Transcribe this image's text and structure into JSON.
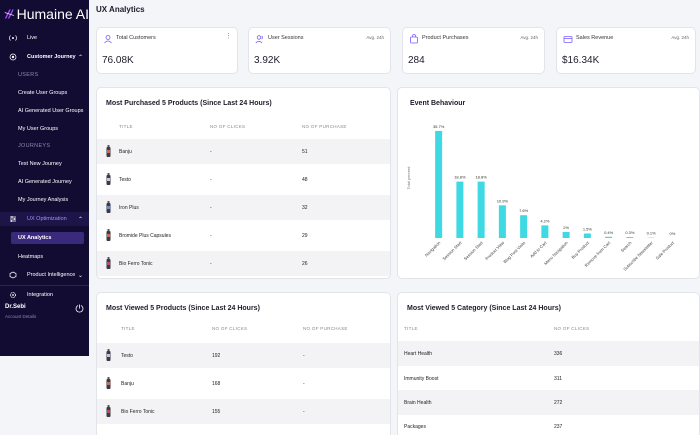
{
  "brand": {
    "name": "Humaine AI"
  },
  "sidebar": {
    "live": "Live",
    "customer_journey": "Customer Journey",
    "users_head": "USERS",
    "create_groups": "Create User Groups",
    "ai_groups": "AI Generated User Groups",
    "my_groups": "My User Groups",
    "journeys_head": "JOURNEYS",
    "test_journey": "Test New Journey",
    "ai_journey": "AI Generated Journey",
    "my_journey_analysis": "My Journey Analysis",
    "ux_optimization": "UX Optimization",
    "ux_analytics": "UX Analytics",
    "heatmaps": "Heatmaps",
    "product_intelligence": "Product Intelligence",
    "integration": "Integration",
    "user_name": "Dr.Sebi",
    "account_details": "Account Details"
  },
  "page": {
    "title": "UX Analytics"
  },
  "stats": [
    {
      "title": "Total Customers",
      "avg": "",
      "value": "76.08K"
    },
    {
      "title": "User Sessions",
      "avg": "Avg. 24h",
      "value": "3.92K"
    },
    {
      "title": "Product Purchases",
      "avg": "Avg. 24h",
      "value": "284"
    },
    {
      "title": "Sales Revenue",
      "avg": "Avg. 24h",
      "value": "$16.34K"
    }
  ],
  "purchased": {
    "title": "Most Purchased 5 Products (Since Last 24 Hours)",
    "headers": [
      "TITLE",
      "NO OF CLICKS",
      "NO OF PURCHASE"
    ],
    "rows": [
      {
        "name": "Banju",
        "clicks": "-",
        "purchase": "51"
      },
      {
        "name": "Testo",
        "clicks": "-",
        "purchase": "48"
      },
      {
        "name": "Iron Plus",
        "clicks": "-",
        "purchase": "32"
      },
      {
        "name": "Bromide Plus Capsules",
        "clicks": "-",
        "purchase": "29"
      },
      {
        "name": "Bio Ferro Tonic",
        "clicks": "-",
        "purchase": "26"
      }
    ]
  },
  "viewed": {
    "title": "Most Viewed 5 Products (Since Last 24 Hours)",
    "headers": [
      "TITLE",
      "NO OF CLICKS",
      "NO OF PURCHASE"
    ],
    "rows": [
      {
        "name": "Testo",
        "clicks": "192",
        "purchase": "-"
      },
      {
        "name": "Banju",
        "clicks": "168",
        "purchase": "-"
      },
      {
        "name": "Bio Ferro Tonic",
        "clicks": "155",
        "purchase": "-"
      }
    ]
  },
  "category": {
    "title": "Most Viewed 5 Category (Since Last 24 Hours)",
    "headers": [
      "TITLE",
      "NO OF CLICKS"
    ],
    "rows": [
      {
        "name": "Heart Health",
        "clicks": "336"
      },
      {
        "name": "Immunity Boost",
        "clicks": "311"
      },
      {
        "name": "Brain Health",
        "clicks": "272"
      },
      {
        "name": "Packages",
        "clicks": "237"
      }
    ]
  },
  "colors": {
    "bar": "#3fd9e4",
    "sidebar": "#120c33",
    "accent": "#7a5cff"
  },
  "chart_data": {
    "type": "bar",
    "title": "Event Behaviour",
    "ylabel": "Total percent",
    "categories": [
      "Navigation",
      "Session Start",
      "Session Start",
      "Product View",
      "Blog Post Visits",
      "Add to Cart",
      "Menu Navigation",
      "Buy Product",
      "Remove from Cart",
      "Search",
      "Subscribe Newsletter",
      "Sale Product"
    ],
    "values": [
      35.7,
      18.8,
      18.8,
      10.9,
      7.6,
      4.2,
      2.0,
      1.5,
      0.4,
      0.3,
      0.1,
      0.0
    ],
    "labels": [
      "35.7%",
      "18.8%",
      "18.8%",
      "10.9%",
      "7.6%",
      "4.2%",
      "2%",
      "1.5%",
      "0.4%",
      "0.3%",
      "0.1%",
      "0%"
    ],
    "ylim": [
      0,
      40
    ]
  }
}
